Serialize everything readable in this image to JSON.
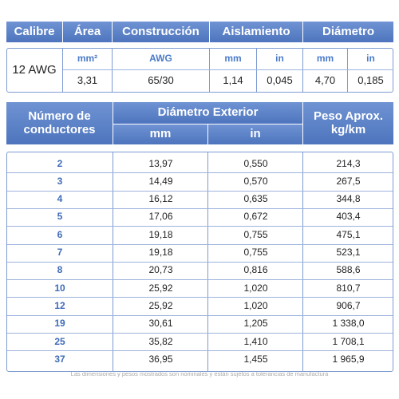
{
  "spec_table": {
    "headers": [
      "Calibre",
      "Área",
      "Construcción",
      "Aislamiento",
      "Diámetro"
    ],
    "calibre": "12 AWG",
    "units": [
      "mm²",
      "AWG",
      "mm",
      "in",
      "mm",
      "in"
    ],
    "values": [
      "3,31",
      "65/30",
      "1,14",
      "0,045",
      "4,70",
      "0,185"
    ]
  },
  "table": {
    "headers": [
      [
        "Número de",
        "conductores"
      ],
      [
        "Diámetro Exterior"
      ],
      [
        "Peso Aprox.",
        "kg/km"
      ]
    ],
    "units": [
      "mm",
      "in"
    ],
    "rows": [
      [
        "2",
        "13,97",
        "0,550",
        "214,3"
      ],
      [
        "3",
        "14,49",
        "0,570",
        "267,5"
      ],
      [
        "4",
        "16,12",
        "0,635",
        "344,8"
      ],
      [
        "5",
        "17,06",
        "0,672",
        "403,4"
      ],
      [
        "6",
        "19,18",
        "0,755",
        "475,1"
      ],
      [
        "7",
        "19,18",
        "0,755",
        "523,1"
      ],
      [
        "8",
        "20,73",
        "0,816",
        "588,6"
      ],
      [
        "10",
        "25,92",
        "1,020",
        "810,7"
      ],
      [
        "12",
        "25,92",
        "1,020",
        "906,7"
      ],
      [
        "19",
        "30,61",
        "1,205",
        "1 338,0"
      ],
      [
        "25",
        "35,82",
        "1,410",
        "1 708,1"
      ],
      [
        "37",
        "36,95",
        "1,455",
        "1 965,9"
      ]
    ]
  },
  "footnote": "Las dimensiones y pesos mostrados son nominales y están sujetos a tolerancias de manufactura"
}
